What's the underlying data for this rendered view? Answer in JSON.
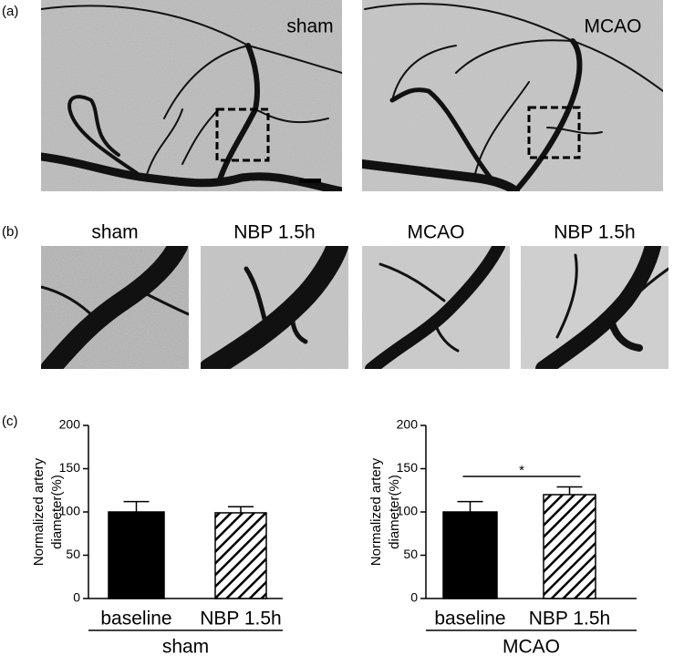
{
  "panel_labels": [
    "(a)",
    "(b)",
    "(c)"
  ],
  "panel_a": {
    "labels": [
      "sham",
      "MCAO"
    ]
  },
  "panel_b": {
    "labels": [
      "sham",
      "NBP 1.5h",
      "MCAO",
      "NBP 1.5h"
    ]
  },
  "chart_data": [
    {
      "type": "bar",
      "ylabel": [
        "Normalized artery",
        "diameter(%)"
      ],
      "group": "sham",
      "categories": [
        "baseline",
        "NBP 1.5h"
      ],
      "values": [
        100,
        99
      ],
      "errors": [
        12,
        7
      ],
      "color": "#000000",
      "bar_styles": [
        "solid",
        "hatched"
      ],
      "ylim": [
        0,
        200
      ],
      "yticks": [
        0,
        50,
        100,
        150,
        200
      ]
    },
    {
      "type": "bar",
      "ylabel": [
        "Normalized artery",
        "diameter(%)"
      ],
      "group": "MCAO",
      "categories": [
        "baseline",
        "NBP 1.5h"
      ],
      "values": [
        100,
        120
      ],
      "errors": [
        12,
        9
      ],
      "color": "#000000",
      "bar_styles": [
        "solid",
        "hatched"
      ],
      "ylim": [
        0,
        200
      ],
      "yticks": [
        0,
        50,
        100,
        150,
        200
      ],
      "significance": {
        "label": "*",
        "pair": [
          0,
          1
        ]
      }
    }
  ]
}
